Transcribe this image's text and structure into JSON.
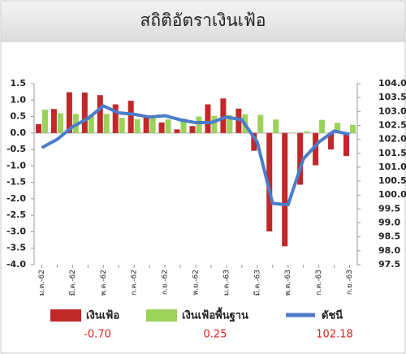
{
  "chart_data": {
    "type": "bar-line",
    "title": "สถิติอัตราเงินเฟ้อ",
    "categories": [
      "ม.ค.-62",
      null,
      "มี.ค.-62",
      null,
      "พ.ค.-62",
      null,
      "ก.ค.-62",
      null,
      "ก.ย.-62",
      null,
      "พ.ย.-62",
      null,
      "ม.ค.-63",
      null,
      "มี.ค.-63",
      null,
      "พ.ค.-63",
      null,
      "ก.ค.-63",
      null,
      "ก.ย.-63"
    ],
    "series": [
      {
        "name": "เงินเฟ้อ",
        "type": "bar",
        "color": "#c0282a",
        "values": [
          0.27,
          0.73,
          1.24,
          1.23,
          1.15,
          0.87,
          0.98,
          0.52,
          0.32,
          0.11,
          0.21,
          0.87,
          1.05,
          0.74,
          -0.54,
          -2.99,
          -3.44,
          -1.57,
          -0.98,
          -0.5,
          -0.7
        ],
        "value_labels": [
          null,
          null,
          null,
          null,
          null,
          null,
          null,
          null,
          null,
          null,
          null,
          null,
          null,
          null,
          null,
          null,
          null,
          null,
          null,
          null,
          "-0.70"
        ]
      },
      {
        "name": "เงินเฟ้อพื้นฐาน",
        "type": "bar",
        "color": "#9bd25a",
        "values": [
          0.71,
          0.6,
          0.58,
          0.55,
          0.58,
          0.46,
          0.42,
          0.45,
          0.41,
          0.44,
          0.5,
          0.52,
          0.54,
          0.57,
          0.55,
          0.41,
          0.01,
          0.05,
          0.4,
          0.31,
          0.25
        ]
      },
      {
        "name": "ดัชนี",
        "type": "line",
        "axis": "y2",
        "color": "#4a7cc9",
        "values": [
          101.7,
          102.0,
          102.45,
          102.75,
          103.2,
          102.95,
          102.9,
          102.8,
          102.85,
          102.7,
          102.6,
          102.6,
          102.8,
          102.7,
          101.9,
          99.7,
          99.65,
          101.3,
          101.9,
          102.3,
          102.18
        ],
        "value_labels": [
          null,
          null,
          null,
          null,
          null,
          null,
          null,
          null,
          null,
          null,
          null,
          null,
          null,
          null,
          null,
          null,
          null,
          null,
          null,
          null,
          "102.18"
        ]
      }
    ],
    "ylim": [
      -4.0,
      1.5
    ],
    "yticks": [
      {
        "value": 1.5,
        "label": "1.5"
      },
      {
        "value": 1,
        "label": "1.0"
      },
      {
        "value": 0.5,
        "label": "0.5"
      },
      {
        "value": 0,
        "label": "0.0"
      },
      {
        "value": -0.5,
        "label": "-0.5"
      },
      {
        "value": -1,
        "label": "-1.0"
      },
      {
        "value": -1.5,
        "label": "-1.5"
      },
      {
        "value": -2,
        "label": "-2.0"
      },
      {
        "value": -2.5,
        "label": "-2.5"
      },
      {
        "value": -3,
        "label": "-3.0"
      },
      {
        "value": -3.5,
        "label": "-3.5"
      },
      {
        "value": -4,
        "label": "-4.0"
      }
    ],
    "y2lim": [
      97.5,
      104.0
    ],
    "y2ticks": [
      {
        "value": 104,
        "label": "104.0"
      },
      103.5,
      {
        "value": 103,
        "label": "103.0"
      },
      102.5,
      {
        "value": 102,
        "label": "102.0"
      },
      101.5,
      {
        "value": 101,
        "label": "101.0"
      },
      100.5,
      {
        "value": 100,
        "label": "100.0"
      },
      99.5,
      {
        "value": 99,
        "label": "99.0"
      },
      98.5,
      {
        "value": 98,
        "label": "98.0"
      },
      97.5
    ],
    "grid": false
  }
}
